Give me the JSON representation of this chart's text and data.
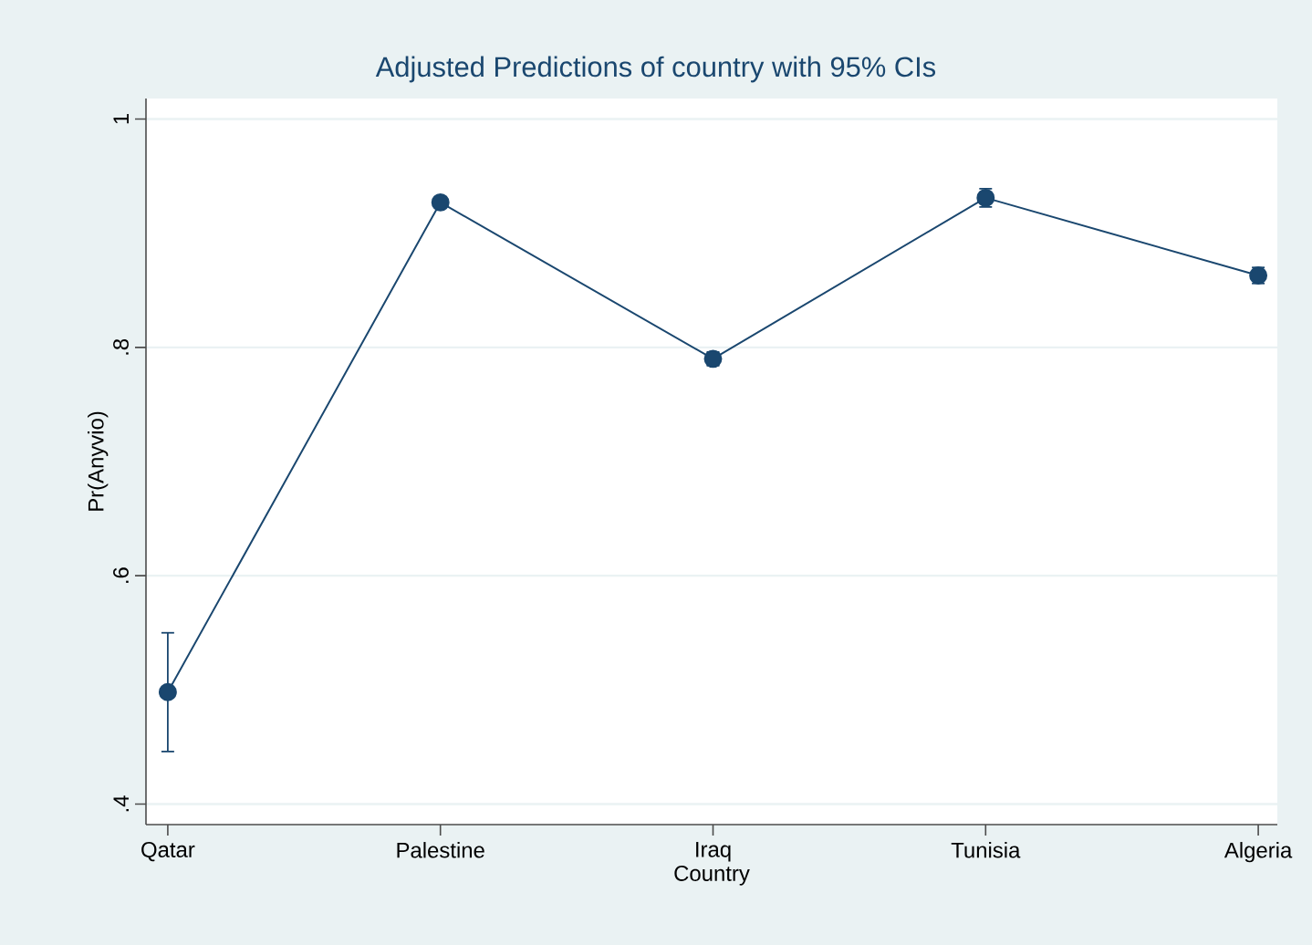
{
  "chart_data": {
    "type": "line",
    "title": "Adjusted Predictions of country with 95% CIs",
    "xlabel": "Country",
    "ylabel": "Pr(Anyvio)",
    "categories": [
      "Qatar",
      "Palestine",
      "Iraq",
      "Tunisia",
      "Algeria"
    ],
    "series": [
      {
        "color": "#1a476f",
        "values": [
          0.498,
          0.927,
          0.79,
          0.931,
          0.863
        ],
        "errors": [
          0.052,
          0.004,
          0.006,
          0.008,
          0.007
        ]
      }
    ],
    "ylim": [
      0.382,
      1.018
    ],
    "yticks": [
      {
        "value": 0.4,
        "label": ".4"
      },
      {
        "value": 0.6,
        "label": ".6"
      },
      {
        "value": 0.8,
        "label": ".8"
      },
      {
        "value": 1,
        "label": "1"
      }
    ],
    "grid": "y",
    "marker": "circle",
    "line_style": "solid"
  }
}
